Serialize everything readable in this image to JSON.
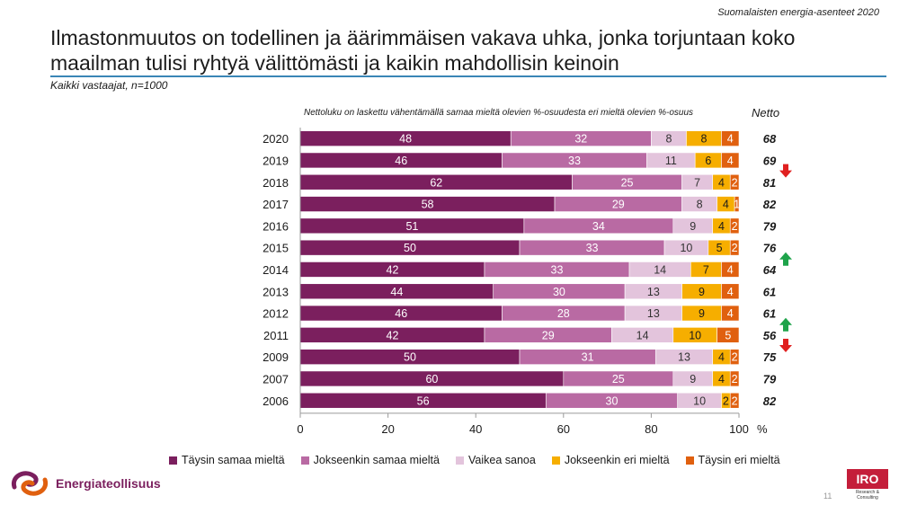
{
  "header": {
    "top_right": "Suomalaisten energia-asenteet 2020",
    "title": "Ilmastonmuutos on todellinen ja äärimmäisen vakava uhka, jonka torjuntaan koko maailman tulisi ryhtyä välittömästi ja kaikin mahdollisin keinoin",
    "subtitle": "Kaikki vastaajat, n=1000"
  },
  "note": "Nettoluku on laskettu vähentämällä samaa mieltä olevien %-osuudesta eri mieltä olevien %-osuus",
  "netto_label": "Netto",
  "chart_data": {
    "type": "bar",
    "orientation": "horizontal",
    "stacked": true,
    "categories": [
      "2020",
      "2019",
      "2018",
      "2017",
      "2016",
      "2015",
      "2014",
      "2013",
      "2012",
      "2011",
      "2009",
      "2007",
      "2006"
    ],
    "series": [
      {
        "name": "Täysin samaa mieltä",
        "color": "#7b1f5e",
        "values": [
          48,
          46,
          62,
          58,
          51,
          50,
          42,
          44,
          46,
          42,
          50,
          60,
          56
        ]
      },
      {
        "name": "Jokseenkin samaa mieltä",
        "color": "#b96aa3",
        "values": [
          32,
          33,
          25,
          29,
          34,
          33,
          33,
          30,
          28,
          29,
          31,
          25,
          30
        ]
      },
      {
        "name": "Vaikea sanoa",
        "color": "#e3c4dc",
        "values": [
          8,
          11,
          7,
          8,
          9,
          10,
          14,
          13,
          13,
          14,
          13,
          9,
          10
        ]
      },
      {
        "name": "Jokseenkin eri mieltä",
        "color": "#f6ae00",
        "values": [
          8,
          6,
          4,
          4,
          4,
          5,
          7,
          9,
          9,
          10,
          4,
          4,
          2
        ]
      },
      {
        "name": "Täysin eri mieltä",
        "color": "#e0600f",
        "values": [
          4,
          4,
          2,
          1,
          2,
          2,
          4,
          4,
          4,
          5,
          2,
          2,
          2
        ]
      }
    ],
    "netto": [
      68,
      69,
      81,
      82,
      79,
      76,
      64,
      61,
      61,
      56,
      75,
      79,
      82
    ],
    "change_markers": [
      {
        "category": "2019",
        "direction": "down",
        "color": "#e02020"
      },
      {
        "category": "2015",
        "direction": "up",
        "color": "#1ea34a"
      },
      {
        "category": "2012",
        "direction": "up",
        "color": "#1ea34a"
      },
      {
        "category": "2011",
        "direction": "down",
        "color": "#e02020"
      }
    ],
    "xlim": [
      0,
      100
    ],
    "xticks": [
      "0",
      "20",
      "40",
      "60",
      "80",
      "100"
    ],
    "x_unit": "%",
    "legend_position": "bottom"
  },
  "footer": {
    "logo_left_text": "Energiateollisuus",
    "logo_right_text": "IRO",
    "logo_right_sub": "Research & Consulting",
    "page_number": "11"
  }
}
